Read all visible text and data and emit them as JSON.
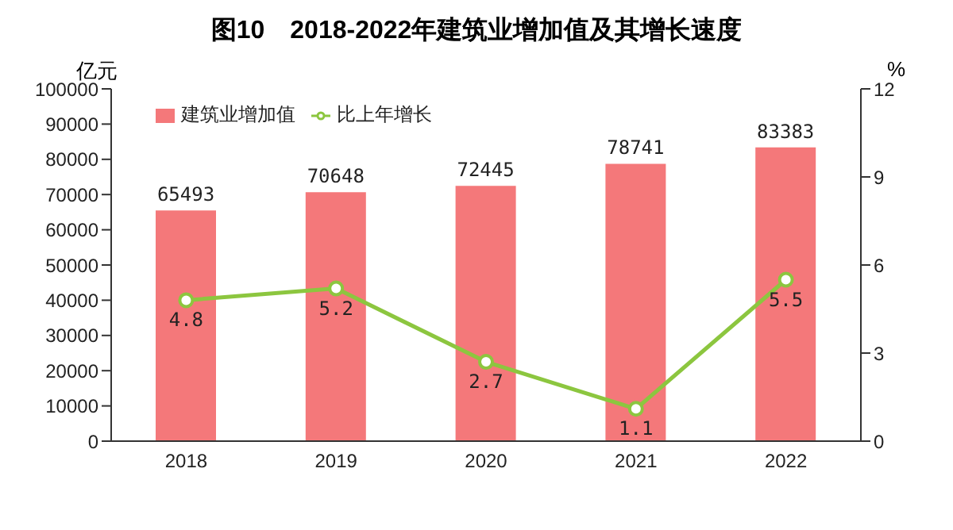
{
  "chart_data": {
    "type": "bar",
    "title": "图10　2018-2022年建筑业增加值及其增长速度",
    "categories": [
      "2018",
      "2019",
      "2020",
      "2021",
      "2022"
    ],
    "series": [
      {
        "name": "建筑业增加值",
        "color": "#f4787a",
        "values": [
          65493,
          70648,
          72445,
          78741,
          83383
        ]
      },
      {
        "name": "比上年增长",
        "type": "line",
        "axis": "y2",
        "color": "#8cc63f",
        "values": [
          4.8,
          5.2,
          2.7,
          1.1,
          5.5
        ]
      }
    ],
    "ylabel": "亿元",
    "y2label": "%",
    "ylim": [
      0,
      100000
    ],
    "yticks": [
      0,
      10000,
      20000,
      30000,
      40000,
      50000,
      60000,
      70000,
      80000,
      90000,
      100000
    ],
    "y2lim": [
      0,
      12
    ],
    "y2ticks": [
      0,
      3,
      6,
      9,
      12
    ],
    "data_labels": true,
    "legend": "top left",
    "marker": "circle",
    "grid": false
  }
}
